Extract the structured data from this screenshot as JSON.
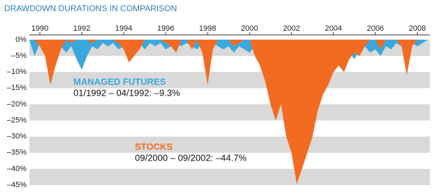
{
  "chart_data": {
    "type": "area",
    "title": "DRAWDOWN DURATIONS IN COMPARISON",
    "x": [
      1989.5,
      1989.75,
      1990,
      1990.25,
      1990.5,
      1990.75,
      1991,
      1991.25,
      1991.5,
      1991.75,
      1992,
      1992.25,
      1992.5,
      1992.75,
      1993,
      1993.25,
      1993.5,
      1993.75,
      1994,
      1994.25,
      1994.5,
      1994.75,
      1995,
      1995.25,
      1995.5,
      1995.75,
      1996,
      1996.25,
      1996.5,
      1996.75,
      1997,
      1997.25,
      1997.5,
      1997.75,
      1998,
      1998.25,
      1998.5,
      1998.75,
      1999,
      1999.25,
      1999.5,
      1999.75,
      2000,
      2000.25,
      2000.5,
      2000.75,
      2001,
      2001.25,
      2001.5,
      2001.75,
      2002,
      2002.25,
      2002.5,
      2002.75,
      2003,
      2003.25,
      2003.5,
      2003.75,
      2004,
      2004.25,
      2004.5,
      2004.75,
      2005,
      2005.25,
      2005.5,
      2005.75,
      2006,
      2006.25,
      2006.5,
      2006.75,
      2007,
      2007.25,
      2007.5,
      2007.75,
      2008,
      2008.25,
      2008.5
    ],
    "series": [
      {
        "name": "MANAGED FUTURES",
        "color": "#3aa8dc",
        "values": [
          0,
          -5,
          -1,
          -3,
          -2,
          0,
          -2,
          -4,
          -2,
          -6,
          -9.3,
          -5,
          -2,
          -3,
          -1,
          -2,
          -1,
          -3,
          -2,
          -4,
          -2,
          -1,
          -3,
          -1,
          -2,
          -1,
          -3,
          -2,
          -1,
          -2,
          -1,
          -2,
          -3,
          -1,
          -2,
          -1,
          -2,
          -3,
          -2,
          -4,
          -2,
          -3,
          -4,
          -2,
          -3,
          -1,
          -2,
          -1,
          -2,
          -1,
          -2,
          -1,
          -1,
          -2,
          -1,
          -2,
          -3,
          -2,
          -4,
          -8,
          -6,
          -4,
          -6,
          -3,
          -2,
          -4,
          -3,
          -5,
          -2,
          -3,
          -1,
          -2,
          -3,
          -1,
          -2,
          -1,
          0
        ]
      },
      {
        "name": "STOCKS",
        "color": "#f26b21",
        "values": [
          0,
          0,
          -2,
          -5,
          -14,
          -8,
          -3,
          0,
          -1,
          0,
          0,
          0,
          -1,
          0,
          0,
          0,
          0,
          -1,
          -3,
          -7,
          -5,
          -3,
          0,
          0,
          0,
          0,
          -1,
          -2,
          -4,
          0,
          0,
          -3,
          0,
          -4,
          -14,
          -3,
          0,
          0,
          0,
          -2,
          -1,
          0,
          0,
          -5,
          -8,
          -13,
          -20,
          -25,
          -20,
          -30,
          -35,
          -44.7,
          -40,
          -35,
          -30,
          -22,
          -17,
          -14,
          -10,
          -8,
          -10,
          -6,
          -4,
          -5,
          -2,
          0,
          0,
          -3,
          0,
          0,
          0,
          -2,
          -11,
          -2,
          0,
          0,
          0
        ]
      }
    ],
    "annotations": [
      {
        "series": 0,
        "text": "01/1992 – 04/1992: –9.3%"
      },
      {
        "series": 1,
        "text": "09/2000 – 09/2002: –44.7%"
      }
    ],
    "xlim": [
      1989.5,
      2008.6
    ],
    "xticks": [
      1990,
      1992,
      1994,
      1996,
      1998,
      2000,
      2002,
      2004,
      2006,
      2008
    ],
    "ylim": [
      -45,
      1.5
    ],
    "yticks": [
      {
        "value": 0,
        "label": "0%"
      },
      {
        "value": -5,
        "label": "–5%"
      },
      {
        "value": -10,
        "label": "–10%"
      },
      {
        "value": -15,
        "label": "–15%"
      },
      {
        "value": -20,
        "label": "–20%"
      },
      {
        "value": -25,
        "label": "–25%"
      },
      {
        "value": -30,
        "label": "–30%"
      },
      {
        "value": -35,
        "label": "–35%"
      },
      {
        "value": -40,
        "label": "–40%"
      },
      {
        "value": -45,
        "label": "–45%"
      }
    ],
    "band_color": "#d9d9d9",
    "title_color": "#2f7fb5"
  }
}
